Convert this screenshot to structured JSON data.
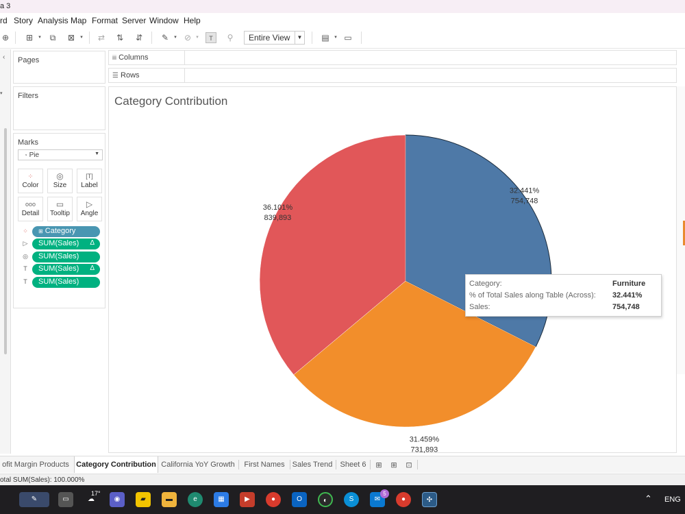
{
  "window": {
    "title_fragment": "a 3"
  },
  "menu": [
    "rd",
    "Story",
    "Analysis",
    "Map",
    "Format",
    "Server",
    "Window",
    "Help"
  ],
  "toolbar": {
    "view_select": "Entire View"
  },
  "panels": {
    "pages": "Pages",
    "filters": "Filters",
    "marks": {
      "title": "Marks",
      "mark_type": "Pie",
      "buttons": [
        "Color",
        "Size",
        "Label",
        "Detail",
        "Tooltip",
        "Angle"
      ],
      "pills": [
        {
          "label": "Category",
          "delta": "",
          "color": "#4996b2"
        },
        {
          "label": "SUM(Sales)",
          "delta": "Δ",
          "color": "#00b180"
        },
        {
          "label": "SUM(Sales)",
          "delta": "",
          "color": "#00b180"
        },
        {
          "label": "SUM(Sales)",
          "delta": "Δ",
          "color": "#00b180"
        },
        {
          "label": "SUM(Sales)",
          "delta": "",
          "color": "#00b180"
        }
      ]
    }
  },
  "shelves": {
    "columns": "Columns",
    "rows": "Rows"
  },
  "sheet": {
    "title": "Category Contribution"
  },
  "chart_data": {
    "type": "pie",
    "title": "Category Contribution",
    "slices": [
      {
        "category": "Furniture",
        "percent": "32.441%",
        "value": 754748,
        "value_label": "754,748",
        "color": "#4e79a7"
      },
      {
        "category": "",
        "percent": "31.459%",
        "value": 731893,
        "value_label": "731,893",
        "color": "#f28e2b"
      },
      {
        "category": "",
        "percent": "36.101%",
        "value": 839893,
        "value_label": "839,893",
        "color": "#e15759"
      }
    ]
  },
  "tooltip": {
    "rows": [
      {
        "key": "Category:",
        "value": "Furniture"
      },
      {
        "key": "% of Total Sales along Table (Across):",
        "value": "32.441%"
      },
      {
        "key": "Sales:",
        "value": "754,748"
      }
    ]
  },
  "tabs": [
    "ofit Margin Products",
    "Category Contribution",
    "California YoY Growth",
    "First Names",
    "Sales Trend",
    "Sheet 6"
  ],
  "active_tab": "Category Contribution",
  "status": {
    "text": "otal SUM(Sales): 100.000%"
  },
  "taskbar": {
    "weather": "17°",
    "mail_badge": "5",
    "lang": "ENG"
  }
}
